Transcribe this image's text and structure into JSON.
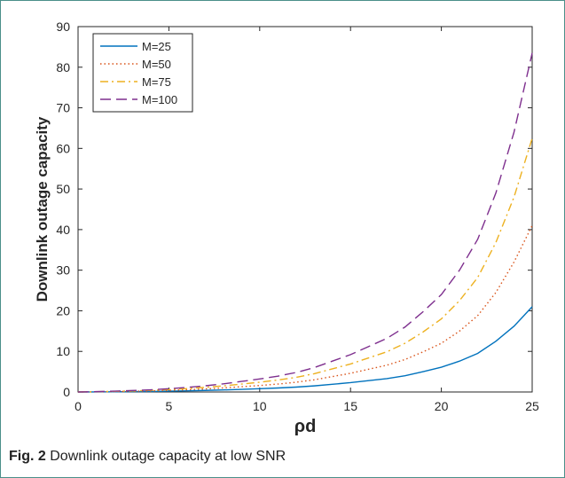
{
  "caption": {
    "label": "Fig. 2",
    "text": "Downlink outage capacity at low SNR"
  },
  "chart_data": {
    "type": "line",
    "xlabel": "ρd",
    "ylabel": "Downlink outage capacity",
    "xlim": [
      0,
      25
    ],
    "ylim": [
      0,
      90
    ],
    "xticks": [
      0,
      5,
      10,
      15,
      20,
      25
    ],
    "yticks": [
      0,
      10,
      20,
      30,
      40,
      50,
      60,
      70,
      80,
      90
    ],
    "grid": false,
    "legend_position": "top-left",
    "x": [
      0,
      1,
      2,
      3,
      4,
      5,
      6,
      7,
      8,
      9,
      10,
      11,
      12,
      13,
      14,
      15,
      16,
      17,
      18,
      19,
      20,
      21,
      22,
      23,
      24,
      25
    ],
    "series": [
      {
        "name": "M=25",
        "color": "#0072BD",
        "dash": "solid",
        "values": [
          0.0,
          0.02,
          0.05,
          0.09,
          0.13,
          0.2,
          0.28,
          0.38,
          0.5,
          0.64,
          0.8,
          0.98,
          1.2,
          1.5,
          1.9,
          2.3,
          2.8,
          3.3,
          4.0,
          5.0,
          6.1,
          7.6,
          9.5,
          12.5,
          16.2,
          21.0
        ]
      },
      {
        "name": "M=50",
        "color": "#D95319",
        "dash": "dotted",
        "values": [
          0.0,
          0.04,
          0.1,
          0.18,
          0.27,
          0.4,
          0.56,
          0.76,
          1.0,
          1.3,
          1.6,
          1.95,
          2.4,
          3.0,
          3.8,
          4.6,
          5.6,
          6.6,
          8.0,
          9.9,
          12.0,
          15.0,
          18.8,
          24.5,
          32.0,
          41.0
        ]
      },
      {
        "name": "M=75",
        "color": "#EDB120",
        "dash": "dashdot",
        "values": [
          0.0,
          0.06,
          0.15,
          0.27,
          0.4,
          0.6,
          0.84,
          1.14,
          1.5,
          1.95,
          2.4,
          2.95,
          3.6,
          4.5,
          5.7,
          6.9,
          8.4,
          9.9,
          12.0,
          14.8,
          18.0,
          22.5,
          28.2,
          36.8,
          48.0,
          62.5
        ]
      },
      {
        "name": "M=100",
        "color": "#7E2F8E",
        "dash": "dashed",
        "values": [
          0.0,
          0.08,
          0.2,
          0.36,
          0.53,
          0.8,
          1.12,
          1.52,
          2.0,
          2.6,
          3.2,
          3.9,
          4.8,
          6.0,
          7.6,
          9.2,
          11.2,
          13.2,
          16.0,
          19.8,
          24.0,
          30.0,
          37.6,
          49.0,
          64.0,
          83.5
        ]
      }
    ]
  }
}
